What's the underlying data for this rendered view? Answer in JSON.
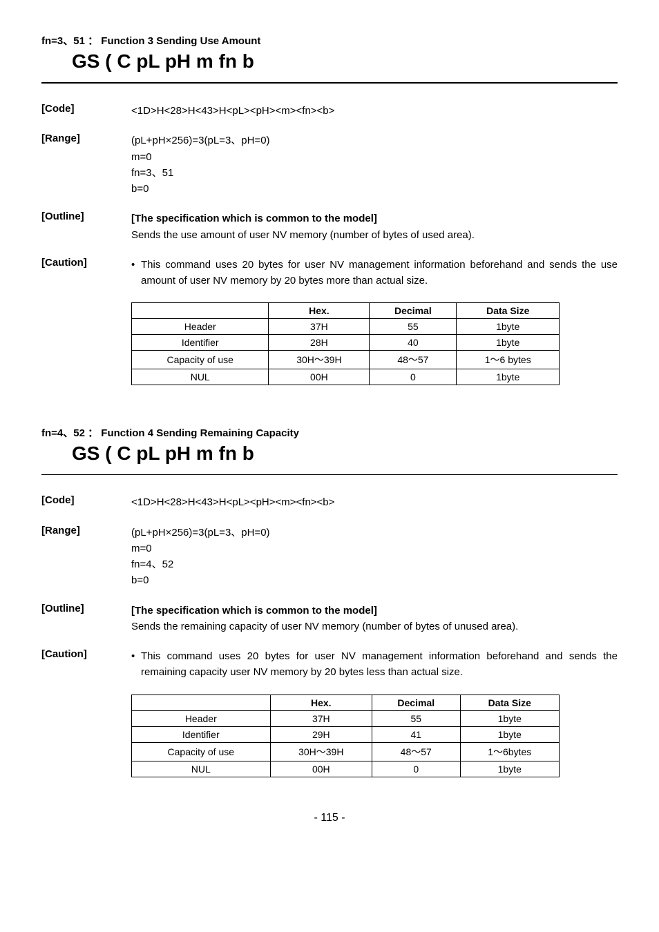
{
  "section1": {
    "heading": "fn=3、51 ： Function 3 Sending Use Amount",
    "big_title": "GS ( C pL pH m fn b",
    "code": {
      "label": "[Code]",
      "value": "<1D>H<28>H<43>H<pL><pH><m><fn><b>"
    },
    "range": {
      "label": "[Range]",
      "lines": [
        "(pL+pH×256)=3(pL=3、pH=0)",
        "m=0",
        "fn=3、51",
        "b=0"
      ]
    },
    "outline": {
      "label": "[Outline]",
      "bold_line": "[The specification which is common to the model]",
      "line2": "Sends the use amount of user NV memory (number of bytes of used area)."
    },
    "caution": {
      "label": "[Caution]",
      "bullet": "•",
      "text": "This command uses 20 bytes for user NV management information beforehand and sends the use amount of user NV memory by 20 bytes more than actual size."
    },
    "table": {
      "headers": [
        "",
        "Hex.",
        "Decimal",
        "Data Size"
      ],
      "rows": [
        [
          "Header",
          "37H",
          "55",
          "1byte"
        ],
        [
          "Identifier",
          "28H",
          "40",
          "1byte"
        ],
        [
          "Capacity of use",
          "30H～39H",
          "48～57",
          "1～6 bytes"
        ],
        [
          "NUL",
          "00H",
          "0",
          "1byte"
        ]
      ]
    }
  },
  "section2": {
    "heading": "fn=4、52 ： Function 4 Sending Remaining Capacity",
    "big_title": "GS ( C pL pH m fn b",
    "code": {
      "label": "[Code]",
      "value": "<1D>H<28>H<43>H<pL><pH><m><fn><b>"
    },
    "range": {
      "label": "[Range]",
      "lines": [
        "(pL+pH×256)=3(pL=3、pH=0)",
        "m=0",
        "fn=4、52",
        "b=0"
      ]
    },
    "outline": {
      "label": "[Outline]",
      "bold_line": "[The specification which is common to the model]",
      "line2": "Sends the remaining capacity of user NV memory (number of bytes of unused area)."
    },
    "caution": {
      "label": "[Caution]",
      "bullet": "•",
      "text": "This command uses 20 bytes for user NV management information beforehand and sends the remaining capacity user NV memory by 20 bytes less than actual size."
    },
    "table": {
      "headers": [
        "",
        "Hex.",
        "Decimal",
        "Data Size"
      ],
      "rows": [
        [
          "Header",
          "37H",
          "55",
          "1byte"
        ],
        [
          "Identifier",
          "29H",
          "41",
          "1byte"
        ],
        [
          "Capacity of use",
          "30H～39H",
          "48～57",
          "1～6bytes"
        ],
        [
          "NUL",
          "00H",
          "0",
          "1byte"
        ]
      ]
    }
  },
  "page_number": "- 115 -"
}
